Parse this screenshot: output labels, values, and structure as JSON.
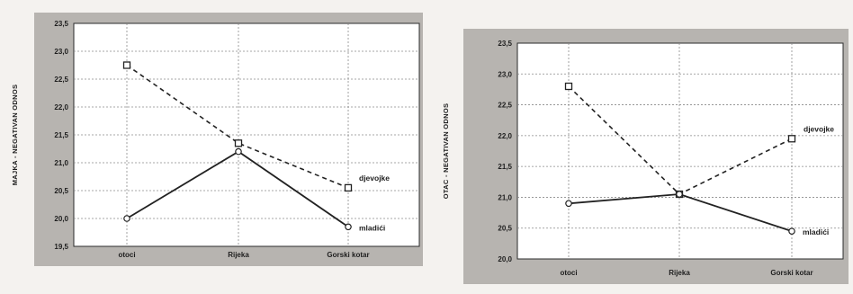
{
  "chart_data": [
    {
      "type": "line",
      "ylabel": "MAJKA - NEGATIVAN ODNOS",
      "categories": [
        "otoci",
        "Rijeka",
        "Gorski kotar"
      ],
      "ylim": [
        19.5,
        23.5
      ],
      "yticks": [
        "19,5",
        "20,0",
        "20,5",
        "21,0",
        "21,5",
        "22,0",
        "22,5",
        "23,0",
        "23,5"
      ],
      "ytick_values": [
        19.5,
        20.0,
        20.5,
        21.0,
        21.5,
        22.0,
        22.5,
        23.0,
        23.5
      ],
      "grid": true,
      "series": [
        {
          "name": "djevojke",
          "values": [
            22.75,
            21.35,
            20.55
          ],
          "style": "dashed",
          "marker": "square"
        },
        {
          "name": "mladići",
          "values": [
            20.0,
            21.2,
            19.85
          ],
          "style": "solid",
          "marker": "circle"
        }
      ]
    },
    {
      "type": "line",
      "ylabel": "OTAC - NEGATIVAN ODNOS",
      "categories": [
        "otoci",
        "Rijeka",
        "Gorski kotar"
      ],
      "ylim": [
        20.0,
        23.5
      ],
      "yticks": [
        "20,0",
        "20,5",
        "21,0",
        "21,5",
        "22,0",
        "22,5",
        "23,0",
        "23,5"
      ],
      "ytick_values": [
        20.0,
        20.5,
        21.0,
        21.5,
        22.0,
        22.5,
        23.0,
        23.5
      ],
      "grid": true,
      "series": [
        {
          "name": "djevojke",
          "values": [
            22.8,
            21.05,
            21.95
          ],
          "style": "dashed",
          "marker": "square"
        },
        {
          "name": "mladići",
          "values": [
            20.9,
            21.05,
            20.45
          ],
          "style": "solid",
          "marker": "circle"
        }
      ]
    }
  ]
}
